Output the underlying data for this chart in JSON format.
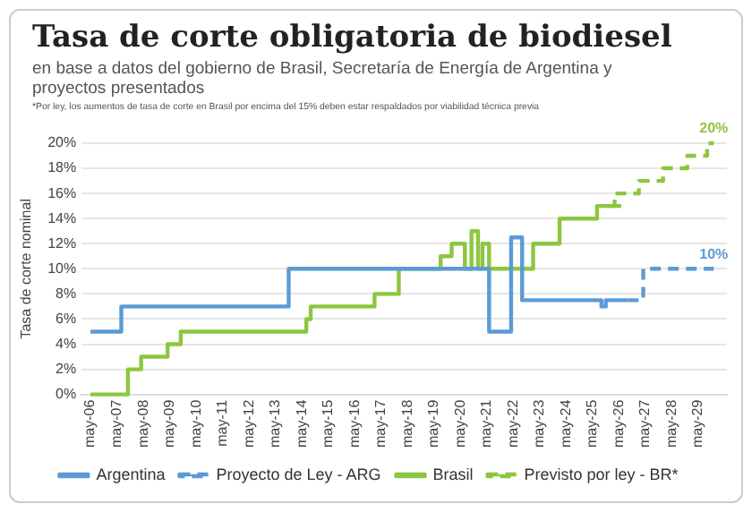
{
  "chart_data": {
    "type": "step",
    "title": "Tasa de corte obligatoria de biodiesel",
    "subtitle": "en base a datos del gobierno de Brasil, Secretaría de Energía de Argentina y proyectos presentados",
    "ylabel": "Tasa de corte nominal",
    "annotations": [
      "*Por ley, los aumentos de tasa de corte en Brasil por encima del 15% deben estar respaldados por viabilidad técnica previa",
      {
        "text": "20%",
        "x": "2029-12",
        "y": 20
      },
      {
        "text": "10%",
        "x": "2029-12",
        "y": 10
      }
    ],
    "series": [
      {
        "name": "Argentina",
        "color": "#5b9bd5",
        "line_style": "solid",
        "x": [
          "2006-05",
          "2007-07",
          "2013-11",
          "2021-06",
          "2022-04",
          "2022-09",
          "2025-09",
          "2025-11",
          "2026-09"
        ],
        "values": [
          5,
          7,
          10,
          5,
          12.5,
          7.5,
          7,
          7.5,
          7.5
        ]
      },
      {
        "name": "Proyecto de Ley - ARG",
        "color": "#5b9bd5",
        "line_style": "dashed",
        "x": [
          "2026-09",
          "2027-04",
          "2029-12"
        ],
        "values": [
          7.5,
          10,
          10
        ]
      },
      {
        "name": "Brasil",
        "color": "#8dc63f",
        "line_style": "solid",
        "x": [
          "2006-05",
          "2007-10",
          "2008-04",
          "2009-04",
          "2009-10",
          "2014-07",
          "2014-09",
          "2017-02",
          "2018-01",
          "2019-08",
          "2020-01",
          "2020-07",
          "2020-10",
          "2021-01",
          "2021-03",
          "2021-06",
          "2023-02",
          "2024-02",
          "2025-07",
          "2026-06"
        ],
        "values": [
          0,
          2,
          3,
          4,
          5,
          6,
          7,
          8,
          10,
          11,
          12,
          10,
          13,
          10,
          12,
          10,
          12,
          14,
          15,
          15
        ]
      },
      {
        "name": "Previsto por ley - BR*",
        "color": "#8dc63f",
        "line_style": "dashed",
        "x": [
          "2026-01",
          "2026-03",
          "2027-02",
          "2028-01",
          "2028-12",
          "2029-09",
          "2029-12"
        ],
        "values": [
          15,
          16,
          17,
          18,
          19,
          20,
          20
        ]
      }
    ],
    "xlim": [
      "2006-01",
      "2030-06"
    ],
    "xticks": [
      {
        "value": "2006-05",
        "label": "may-06"
      },
      {
        "value": "2007-05",
        "label": "may-07"
      },
      {
        "value": "2008-05",
        "label": "may-08"
      },
      {
        "value": "2009-05",
        "label": "may-09"
      },
      {
        "value": "2010-05",
        "label": "may-10"
      },
      {
        "value": "2011-05",
        "label": "may-11"
      },
      {
        "value": "2012-05",
        "label": "may-12"
      },
      {
        "value": "2013-05",
        "label": "may-13"
      },
      {
        "value": "2014-05",
        "label": "may-14"
      },
      {
        "value": "2015-05",
        "label": "may-15"
      },
      {
        "value": "2016-05",
        "label": "may-16"
      },
      {
        "value": "2017-05",
        "label": "may-17"
      },
      {
        "value": "2018-05",
        "label": "may-18"
      },
      {
        "value": "2019-05",
        "label": "may-19"
      },
      {
        "value": "2020-05",
        "label": "may-20"
      },
      {
        "value": "2021-05",
        "label": "may-21"
      },
      {
        "value": "2022-05",
        "label": "may-22"
      },
      {
        "value": "2023-05",
        "label": "may-23"
      },
      {
        "value": "2024-05",
        "label": "may-24"
      },
      {
        "value": "2025-05",
        "label": "may-25"
      },
      {
        "value": "2026-05",
        "label": "may-26"
      },
      {
        "value": "2027-05",
        "label": "may-27"
      },
      {
        "value": "2028-05",
        "label": "may-28"
      },
      {
        "value": "2029-05",
        "label": "may-29"
      }
    ],
    "ylim": [
      0,
      20
    ],
    "yticks": [
      {
        "value": 0,
        "label": "0%"
      },
      {
        "value": 2,
        "label": "2%"
      },
      {
        "value": 4,
        "label": "4%"
      },
      {
        "value": 6,
        "label": "6%"
      },
      {
        "value": 8,
        "label": "8%"
      },
      {
        "value": 10,
        "label": "10%"
      },
      {
        "value": 12,
        "label": "12%"
      },
      {
        "value": 14,
        "label": "14%"
      },
      {
        "value": 16,
        "label": "16%"
      },
      {
        "value": 18,
        "label": "18%"
      },
      {
        "value": 20,
        "label": "20%"
      }
    ],
    "grid": "y",
    "legend": "bottom"
  }
}
